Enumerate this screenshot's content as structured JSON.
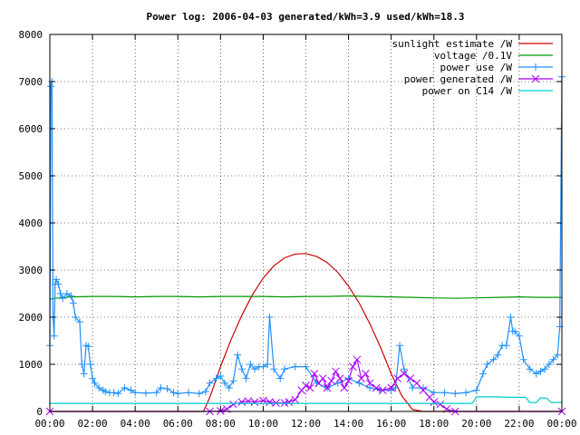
{
  "chart_data": {
    "type": "line",
    "title": "Power log: 2006-04-03 generated/kWh=3.9 used/kWh=18.3",
    "xlabel": "",
    "ylabel": "",
    "xlim": [
      0,
      24
    ],
    "ylim": [
      0,
      8000
    ],
    "grid": true,
    "legend_position": "top-right",
    "x_ticks": [
      {
        "value": 0,
        "label": "00:00"
      },
      {
        "value": 2,
        "label": "02:00"
      },
      {
        "value": 4,
        "label": "04:00"
      },
      {
        "value": 6,
        "label": "06:00"
      },
      {
        "value": 8,
        "label": "08:00"
      },
      {
        "value": 10,
        "label": "10:00"
      },
      {
        "value": 12,
        "label": "12:00"
      },
      {
        "value": 14,
        "label": "14:00"
      },
      {
        "value": 16,
        "label": "16:00"
      },
      {
        "value": 18,
        "label": "18:00"
      },
      {
        "value": 20,
        "label": "20:00"
      },
      {
        "value": 22,
        "label": "22:00"
      },
      {
        "value": 24,
        "label": "00:00"
      }
    ],
    "y_ticks": [
      {
        "value": 0,
        "label": "0"
      },
      {
        "value": 1000,
        "label": "1000"
      },
      {
        "value": 2000,
        "label": "2000"
      },
      {
        "value": 3000,
        "label": "3000"
      },
      {
        "value": 4000,
        "label": "4000"
      },
      {
        "value": 5000,
        "label": "5000"
      },
      {
        "value": 6000,
        "label": "6000"
      },
      {
        "value": 7000,
        "label": "7000"
      },
      {
        "value": 8000,
        "label": "8000"
      }
    ],
    "series": [
      {
        "name": "sunlight estimate /W",
        "color": "#cc0000",
        "marker": "none",
        "x": [
          0,
          7.2,
          7.5,
          8,
          8.5,
          9,
          9.5,
          10,
          10.5,
          11,
          11.5,
          12,
          12.5,
          13,
          13.5,
          14,
          14.5,
          15,
          15.5,
          16,
          16.5,
          17,
          17.5,
          17.8,
          18,
          24
        ],
        "y": [
          0,
          0,
          300,
          950,
          1530,
          2040,
          2480,
          2830,
          3090,
          3260,
          3340,
          3350,
          3290,
          3160,
          2950,
          2660,
          2300,
          1860,
          1360,
          800,
          330,
          40,
          0,
          0,
          0,
          0
        ]
      },
      {
        "name": "voltage /0.1V",
        "color": "#009900",
        "marker": "none",
        "x": [
          0,
          0.2,
          0.5,
          1,
          2,
          3,
          4,
          5,
          6,
          7,
          8,
          9,
          10,
          11,
          12,
          13,
          14,
          15,
          16,
          17,
          18,
          19,
          20,
          21,
          22,
          23,
          23.6,
          24
        ],
        "y": [
          2380,
          2400,
          2410,
          2430,
          2440,
          2440,
          2430,
          2440,
          2440,
          2430,
          2440,
          2440,
          2440,
          2430,
          2440,
          2440,
          2450,
          2440,
          2430,
          2420,
          2410,
          2400,
          2410,
          2420,
          2430,
          2420,
          2420,
          2420
        ]
      },
      {
        "name": "power use /W",
        "color": "#1e90ff",
        "marker": "plus",
        "x": [
          0,
          0.05,
          0.1,
          0.15,
          0.2,
          0.25,
          0.3,
          0.4,
          0.5,
          0.6,
          0.8,
          1.0,
          1.1,
          1.2,
          1.4,
          1.5,
          1.6,
          1.7,
          1.8,
          1.9,
          2.0,
          2.1,
          2.3,
          2.5,
          2.6,
          2.8,
          3.0,
          3.2,
          3.5,
          3.8,
          4.0,
          4.5,
          5.0,
          5.2,
          5.5,
          5.8,
          6.0,
          6.5,
          7.0,
          7.3,
          7.5,
          7.8,
          8.0,
          8.2,
          8.4,
          8.6,
          8.8,
          9.0,
          9.2,
          9.4,
          9.6,
          9.8,
          10.0,
          10.2,
          10.3,
          10.5,
          10.8,
          11.0,
          11.5,
          12.0,
          12.5,
          13.0,
          13.5,
          14.0,
          14.5,
          15.0,
          15.5,
          16.0,
          16.2,
          16.4,
          16.6,
          17.0,
          17.5,
          18.0,
          18.5,
          19.0,
          19.5,
          20.0,
          20.3,
          20.5,
          20.8,
          21.0,
          21.2,
          21.4,
          21.6,
          21.7,
          21.8,
          22.0,
          22.2,
          22.5,
          22.8,
          23.0,
          23.2,
          23.4,
          23.6,
          23.8,
          23.9,
          24
        ],
        "y": [
          1400,
          6900,
          7000,
          2000,
          1600,
          2700,
          2800,
          2700,
          2500,
          2400,
          2500,
          2450,
          2300,
          2000,
          1900,
          1000,
          800,
          1400,
          1380,
          1000,
          700,
          600,
          500,
          450,
          420,
          400,
          400,
          380,
          500,
          450,
          400,
          390,
          400,
          500,
          480,
          400,
          380,
          400,
          380,
          420,
          600,
          700,
          750,
          600,
          500,
          650,
          1200,
          900,
          700,
          1000,
          900,
          950,
          950,
          1000,
          2000,
          900,
          700,
          900,
          950,
          950,
          600,
          500,
          600,
          700,
          600,
          500,
          450,
          450,
          500,
          1400,
          900,
          500,
          500,
          400,
          400,
          380,
          400,
          450,
          800,
          1000,
          1100,
          1200,
          1400,
          1400,
          2000,
          1700,
          1700,
          1600,
          1100,
          900,
          800,
          850,
          900,
          1000,
          1100,
          1200,
          1800,
          7100
        ]
      },
      {
        "name": "power generated /W",
        "color": "#aa00ff",
        "marker": "cross",
        "x": [
          0,
          7.5,
          8.0,
          8.3,
          8.6,
          9.0,
          9.3,
          9.6,
          10.0,
          10.3,
          10.6,
          11.0,
          11.2,
          11.5,
          11.8,
          12.0,
          12.2,
          12.4,
          12.6,
          12.8,
          13.0,
          13.2,
          13.4,
          13.6,
          13.8,
          14.0,
          14.2,
          14.4,
          14.6,
          14.8,
          15.0,
          15.3,
          15.6,
          16.0,
          16.3,
          16.6,
          16.9,
          17.2,
          17.5,
          17.8,
          18.0,
          18.3,
          18.6,
          19.0,
          24
        ],
        "y": [
          0,
          0,
          10,
          50,
          150,
          200,
          220,
          200,
          230,
          200,
          180,
          180,
          200,
          250,
          450,
          550,
          500,
          800,
          600,
          700,
          500,
          650,
          850,
          700,
          500,
          650,
          950,
          1100,
          700,
          800,
          600,
          500,
          450,
          500,
          700,
          800,
          700,
          600,
          450,
          300,
          200,
          150,
          50,
          0,
          0
        ]
      },
      {
        "name": "power on C14 /W",
        "color": "#00cccc",
        "marker": "none",
        "x": [
          0,
          1,
          2,
          3,
          4,
          5,
          6,
          7,
          8,
          9,
          10,
          11,
          12,
          13,
          14,
          15,
          16,
          17,
          18,
          19,
          19.8,
          20.0,
          20.2,
          21,
          21.5,
          22,
          22.3,
          22.5,
          22.8,
          23.0,
          23.3,
          23.5,
          24
        ],
        "y": [
          170,
          170,
          170,
          170,
          170,
          170,
          170,
          170,
          170,
          170,
          170,
          170,
          170,
          170,
          170,
          170,
          170,
          170,
          170,
          170,
          170,
          310,
          310,
          310,
          300,
          300,
          300,
          190,
          190,
          290,
          280,
          190,
          190
        ]
      }
    ]
  }
}
